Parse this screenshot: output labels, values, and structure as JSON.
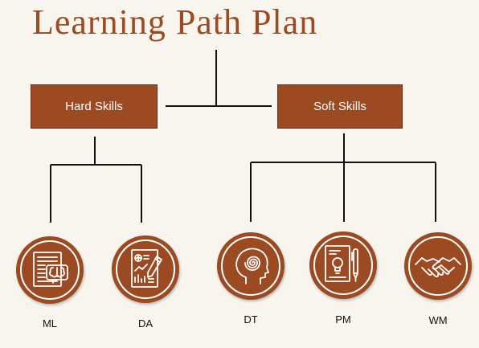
{
  "title": "Learning Path Plan",
  "colors": {
    "primary": "#9b4a22",
    "title": "#9c4a21",
    "line": "#111111",
    "background": "#f7f5ed",
    "icon_stroke": "#ffffff"
  },
  "categories": [
    {
      "label": "Hard Skills",
      "children": [
        {
          "label": "ML",
          "icon": "document-brain-icon"
        },
        {
          "label": "DA",
          "icon": "report-chart-icon"
        }
      ]
    },
    {
      "label": "Soft Skills",
      "children": [
        {
          "label": "DT",
          "icon": "head-spiral-icon"
        },
        {
          "label": "PM",
          "icon": "document-lightbulb-pen-icon"
        },
        {
          "label": "WM",
          "icon": "handshake-icon"
        }
      ]
    }
  ]
}
